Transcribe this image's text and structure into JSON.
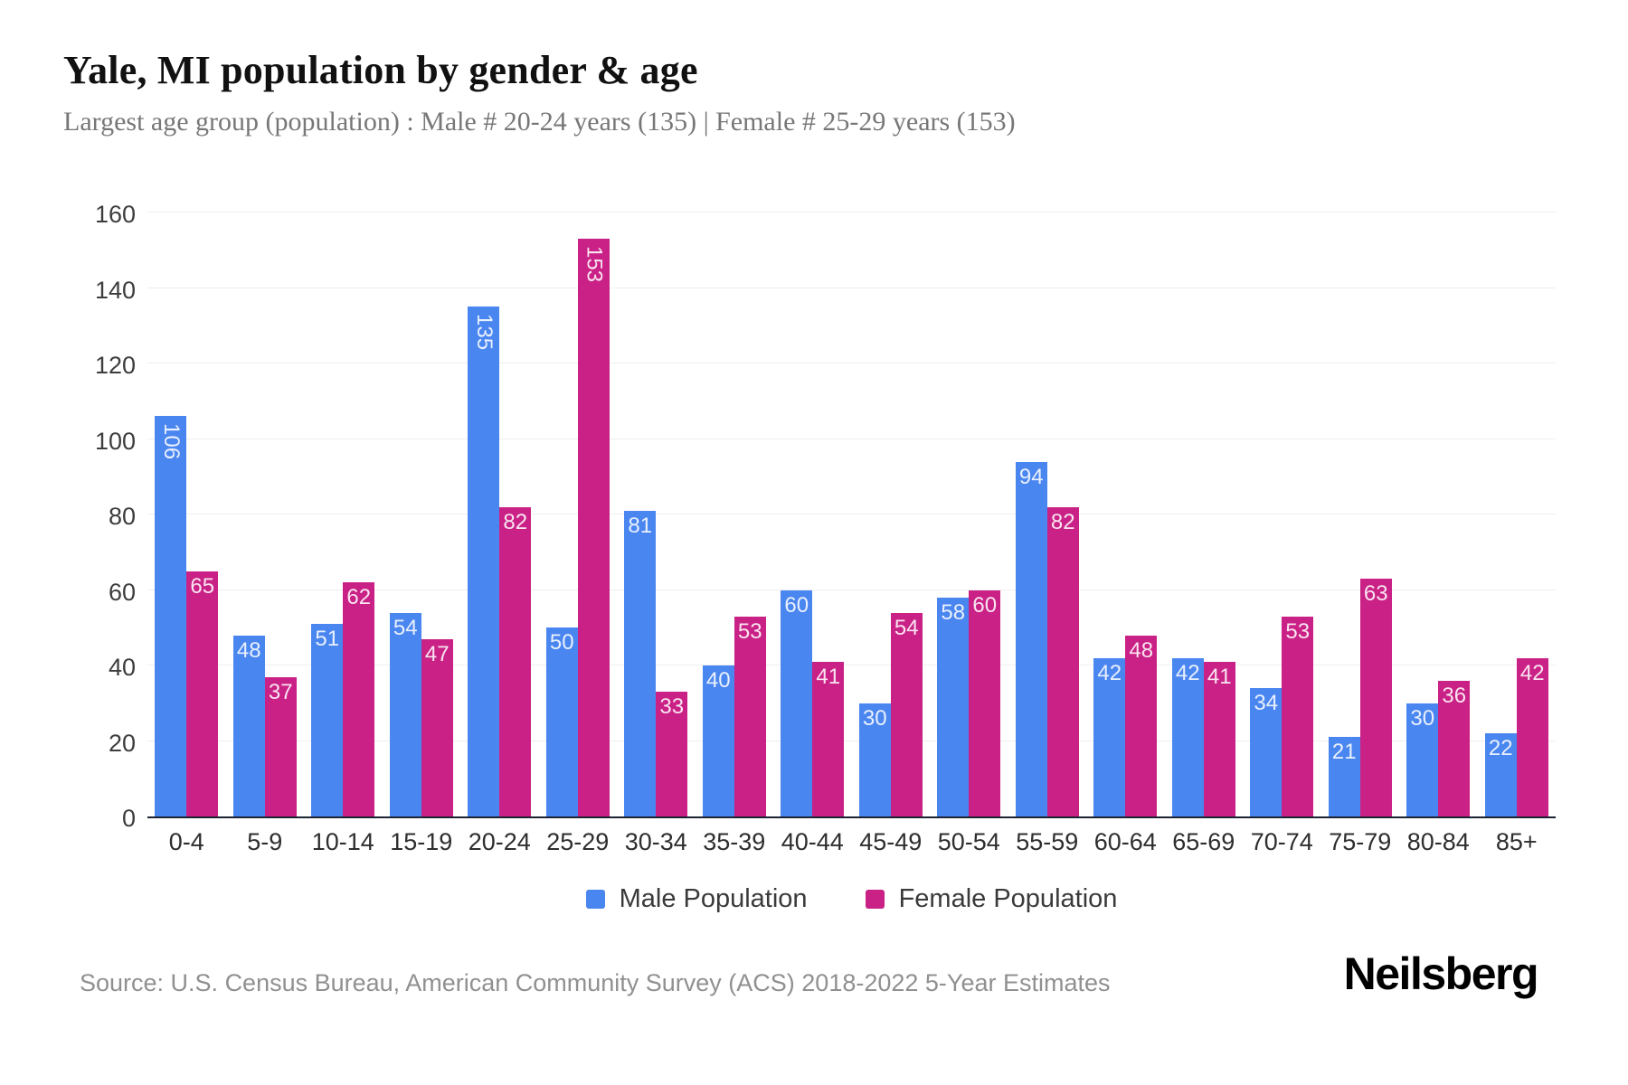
{
  "header": {
    "title": "Yale, MI population by gender & age",
    "subtitle": "Largest age group (population) : Male # 20-24 years (135) | Female # 25-29 years (153)"
  },
  "chart_data": {
    "type": "bar",
    "title": "Yale, MI population by gender & age",
    "categories": [
      "0-4",
      "5-9",
      "10-14",
      "15-19",
      "20-24",
      "25-29",
      "30-34",
      "35-39",
      "40-44",
      "45-49",
      "50-54",
      "55-59",
      "60-64",
      "65-69",
      "70-74",
      "75-79",
      "80-84",
      "85+"
    ],
    "series": [
      {
        "name": "Male Population",
        "color": "#4a86f0",
        "values": [
          106,
          48,
          51,
          54,
          135,
          50,
          81,
          40,
          60,
          30,
          58,
          94,
          42,
          42,
          34,
          21,
          30,
          22
        ]
      },
      {
        "name": "Female Population",
        "color": "#ca2186",
        "values": [
          65,
          37,
          62,
          47,
          82,
          153,
          33,
          53,
          41,
          54,
          60,
          82,
          48,
          41,
          53,
          63,
          36,
          42
        ]
      }
    ],
    "xlabel": "",
    "ylabel": "",
    "ylim": [
      0,
      160
    ],
    "yticks": [
      0,
      20,
      40,
      60,
      80,
      100,
      120,
      140,
      160
    ],
    "grid": true,
    "legend_position": "bottom",
    "axis_color": "#1c2333",
    "grid_color": "#efefef"
  },
  "footer": {
    "source": "Source: U.S. Census Bureau, American Community Survey (ACS) 2018-2022 5-Year Estimates",
    "brand": "Neilsberg"
  }
}
